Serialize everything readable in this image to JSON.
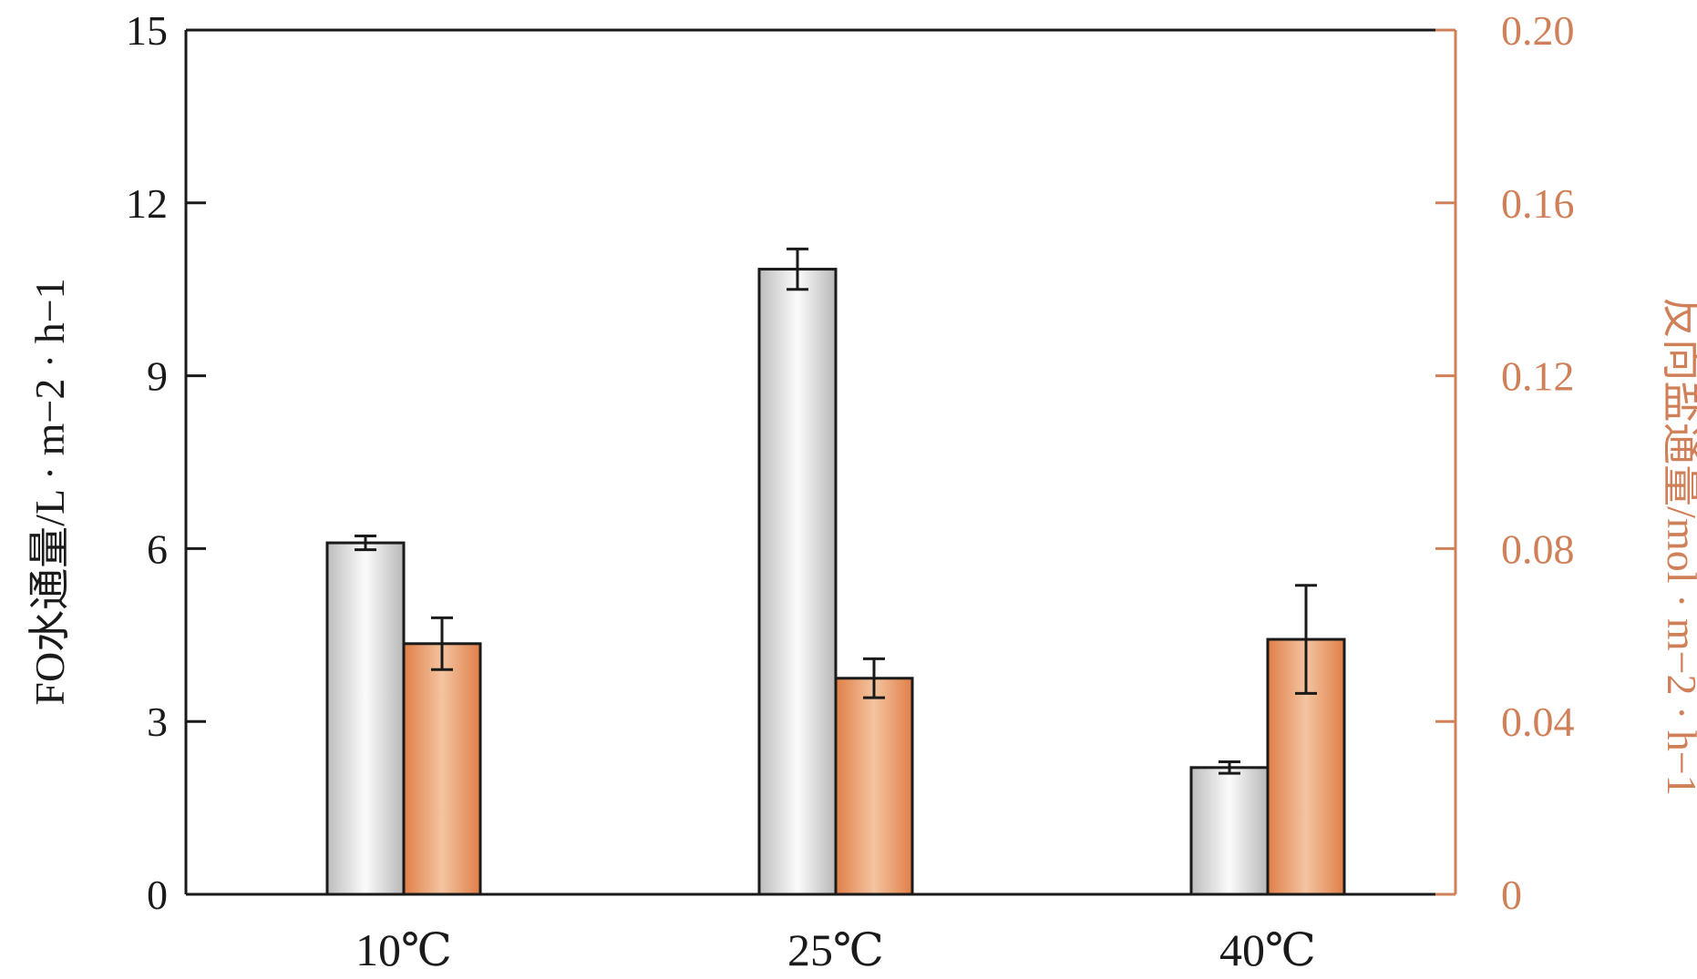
{
  "chart_data": {
    "type": "bar",
    "categories": [
      "10℃",
      "25℃",
      "40℃"
    ],
    "series": [
      {
        "axis": "left",
        "values": [
          6.1,
          10.85,
          2.2
        ],
        "errors": [
          0.12,
          0.35,
          0.1
        ],
        "color": "#c6c6c6"
      },
      {
        "axis": "right",
        "values": [
          0.058,
          0.05,
          0.059
        ],
        "errors": [
          0.006,
          0.0045,
          0.0125
        ],
        "color": "#e88a52"
      }
    ],
    "ylabel_left": "FO水通量/L · m−2 · h−1",
    "ylabel_right": "反向盐通量/mol · m−2 · h−1",
    "ylim_left": [
      0,
      15
    ],
    "yticks_left": [
      "0",
      "3",
      "6",
      "9",
      "12",
      "15"
    ],
    "ylim_right": [
      0,
      0.2
    ],
    "yticks_right": [
      "0",
      "0.04",
      "0.08",
      "0.12",
      "0.16",
      "0.20"
    ],
    "grid": false,
    "legend": "none"
  },
  "colors": {
    "axis_left": "#1a1a1a",
    "axis_right": "#d08058",
    "bar_edge": "#1a1a1a"
  }
}
